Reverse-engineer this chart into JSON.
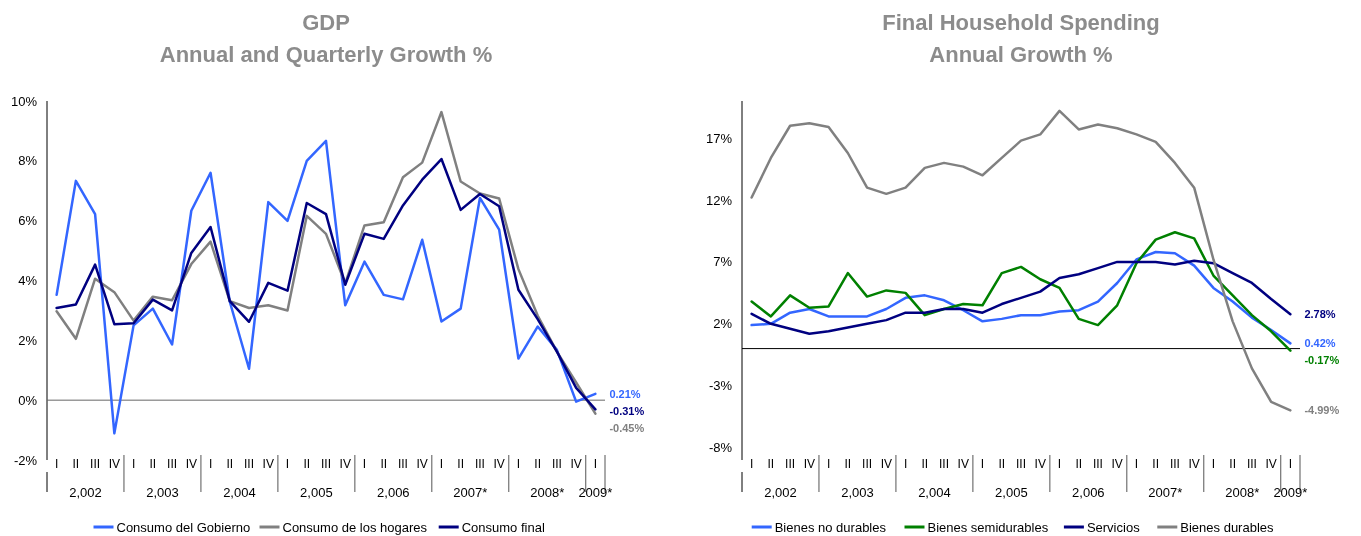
{
  "chart_data": [
    {
      "type": "line",
      "title": "GDP",
      "subtitle": "Annual and Quarterly Growth %",
      "categories": [
        "I",
        "II",
        "III",
        "IV",
        "I",
        "II",
        "III",
        "IV",
        "I",
        "II",
        "III",
        "IV",
        "I",
        "II",
        "III",
        "IV",
        "I",
        "II",
        "III",
        "IV",
        "I",
        "II",
        "III",
        "IV",
        "I",
        "II",
        "III",
        "IV",
        "I"
      ],
      "annotations": [
        "2,002",
        "2,003",
        "2,004",
        "2,005",
        "2,006",
        "2007*",
        "2008*",
        "2009*"
      ],
      "ylim": [
        -2,
        10
      ],
      "yticks": [
        {
          "value": -2,
          "label": "-2%"
        },
        {
          "value": 0,
          "label": "0%"
        },
        {
          "value": 2,
          "label": "2%"
        },
        {
          "value": 4,
          "label": "4%"
        },
        {
          "value": 6,
          "label": "6%"
        },
        {
          "value": 8,
          "label": "8%"
        },
        {
          "value": 10,
          "label": "10%"
        }
      ],
      "legend": "bottom",
      "series": [
        {
          "name": "Consumo del Gobierno",
          "color": "#3366ff",
          "values": [
            3.52,
            7.33,
            6.22,
            -1.11,
            2.5,
            3.06,
            1.86,
            6.33,
            7.6,
            3.29,
            1.05,
            6.62,
            5.99,
            8.0,
            8.67,
            3.17,
            4.63,
            3.52,
            3.37,
            5.36,
            2.63,
            3.06,
            6.76,
            5.7,
            1.39,
            2.46,
            1.68,
            -0.05,
            0.21
          ],
          "value_labels": [
            null,
            null,
            null,
            null,
            null,
            null,
            null,
            null,
            null,
            null,
            null,
            null,
            null,
            null,
            null,
            null,
            null,
            null,
            null,
            null,
            null,
            null,
            null,
            null,
            null,
            null,
            null,
            null,
            "0.21%"
          ]
        },
        {
          "name": "Consumo de los hogares",
          "color": "#808080",
          "values": [
            2.97,
            2.05,
            4.06,
            3.61,
            2.66,
            3.46,
            3.34,
            4.55,
            5.3,
            3.31,
            3.08,
            3.17,
            3.0,
            6.16,
            5.56,
            3.9,
            5.84,
            5.95,
            7.45,
            7.94,
            9.63,
            7.31,
            6.91,
            6.74,
            4.38,
            2.83,
            1.62,
            0.59,
            -0.45
          ],
          "value_labels": [
            null,
            null,
            null,
            null,
            null,
            null,
            null,
            null,
            null,
            null,
            null,
            null,
            null,
            null,
            null,
            null,
            null,
            null,
            null,
            null,
            null,
            null,
            null,
            null,
            null,
            null,
            null,
            null,
            "-0.45%"
          ]
        },
        {
          "name": "Consumo final",
          "color": "#000080",
          "values": [
            3.08,
            3.2,
            4.53,
            2.54,
            2.57,
            3.36,
            3.0,
            4.92,
            5.79,
            3.31,
            2.62,
            3.92,
            3.66,
            6.59,
            6.22,
            3.86,
            5.56,
            5.39,
            6.51,
            7.37,
            8.06,
            6.36,
            6.89,
            6.48,
            3.69,
            2.71,
            1.62,
            0.41,
            -0.31
          ],
          "value_labels": [
            null,
            null,
            null,
            null,
            null,
            null,
            null,
            null,
            null,
            null,
            null,
            null,
            null,
            null,
            null,
            null,
            null,
            null,
            null,
            null,
            null,
            null,
            null,
            null,
            null,
            null,
            null,
            null,
            "-0.31%"
          ]
        }
      ]
    },
    {
      "type": "line",
      "title": "Final Household Spending",
      "subtitle": "Annual Growth %",
      "categories": [
        "I",
        "II",
        "III",
        "IV",
        "I",
        "II",
        "III",
        "IV",
        "I",
        "II",
        "III",
        "IV",
        "I",
        "II",
        "III",
        "IV",
        "I",
        "II",
        "III",
        "IV",
        "I",
        "II",
        "III",
        "IV",
        "I",
        "II",
        "III",
        "IV",
        "I"
      ],
      "annotations": [
        "2,002",
        "2,003",
        "2,004",
        "2,005",
        "2,006",
        "2007*",
        "2008*",
        "2009*"
      ],
      "ylim": [
        -9,
        20
      ],
      "yticks": [
        {
          "value": -8,
          "label": "-8%"
        },
        {
          "value": -3,
          "label": "-3%"
        },
        {
          "value": 2,
          "label": "2%"
        },
        {
          "value": 7,
          "label": "7%"
        },
        {
          "value": 12,
          "label": "12%"
        },
        {
          "value": 17,
          "label": "17%"
        }
      ],
      "legend": "bottom",
      "series": [
        {
          "name": "Bienes no durables",
          "color": "#3366ff",
          "values": [
            1.9,
            2.0,
            2.9,
            3.2,
            2.6,
            2.6,
            2.6,
            3.2,
            4.1,
            4.3,
            3.9,
            3.1,
            2.2,
            2.4,
            2.7,
            2.7,
            3.0,
            3.1,
            3.8,
            5.3,
            7.2,
            7.8,
            7.7,
            6.7,
            4.9,
            3.8,
            2.5,
            1.5,
            0.42
          ],
          "value_labels": [
            null,
            null,
            null,
            null,
            null,
            null,
            null,
            null,
            null,
            null,
            null,
            null,
            null,
            null,
            null,
            null,
            null,
            null,
            null,
            null,
            null,
            null,
            null,
            null,
            null,
            null,
            null,
            null,
            "0.42%"
          ]
        },
        {
          "name": "Bienes semidurables",
          "color": "#008000",
          "values": [
            3.8,
            2.6,
            4.3,
            3.3,
            3.4,
            6.1,
            4.2,
            4.7,
            4.5,
            2.7,
            3.2,
            3.6,
            3.5,
            6.1,
            6.6,
            5.6,
            4.9,
            2.4,
            1.9,
            3.5,
            6.9,
            8.8,
            9.4,
            8.9,
            5.9,
            4.3,
            2.7,
            1.4,
            -0.17
          ],
          "value_labels": [
            null,
            null,
            null,
            null,
            null,
            null,
            null,
            null,
            null,
            null,
            null,
            null,
            null,
            null,
            null,
            null,
            null,
            null,
            null,
            null,
            null,
            null,
            null,
            null,
            null,
            null,
            null,
            null,
            "-0.17%"
          ]
        },
        {
          "name": "Servicios",
          "color": "#000080",
          "values": [
            2.8,
            2.0,
            1.6,
            1.2,
            1.4,
            1.7,
            2.0,
            2.3,
            2.9,
            2.9,
            3.2,
            3.2,
            2.9,
            3.6,
            4.1,
            4.6,
            5.7,
            6.0,
            6.5,
            7.0,
            7.0,
            7.0,
            6.8,
            7.1,
            6.9,
            6.1,
            5.3,
            4.0,
            2.78
          ],
          "value_labels": [
            null,
            null,
            null,
            null,
            null,
            null,
            null,
            null,
            null,
            null,
            null,
            null,
            null,
            null,
            null,
            null,
            null,
            null,
            null,
            null,
            null,
            null,
            null,
            null,
            null,
            null,
            null,
            null,
            "2.78%"
          ]
        },
        {
          "name": "Bienes durables",
          "color": "#808080",
          "values": [
            12.2,
            15.4,
            18.0,
            18.2,
            17.9,
            15.8,
            13.0,
            12.5,
            13.0,
            14.6,
            15.0,
            14.7,
            14.0,
            15.4,
            16.8,
            17.3,
            19.2,
            17.7,
            18.1,
            17.8,
            17.3,
            16.7,
            15.0,
            13.0,
            7.2,
            2.2,
            -1.6,
            -4.3,
            -4.99
          ],
          "value_labels": [
            null,
            null,
            null,
            null,
            null,
            null,
            null,
            null,
            null,
            null,
            null,
            null,
            null,
            null,
            null,
            null,
            null,
            null,
            null,
            null,
            null,
            null,
            null,
            null,
            null,
            null,
            null,
            null,
            "-4.99%"
          ]
        }
      ]
    }
  ]
}
